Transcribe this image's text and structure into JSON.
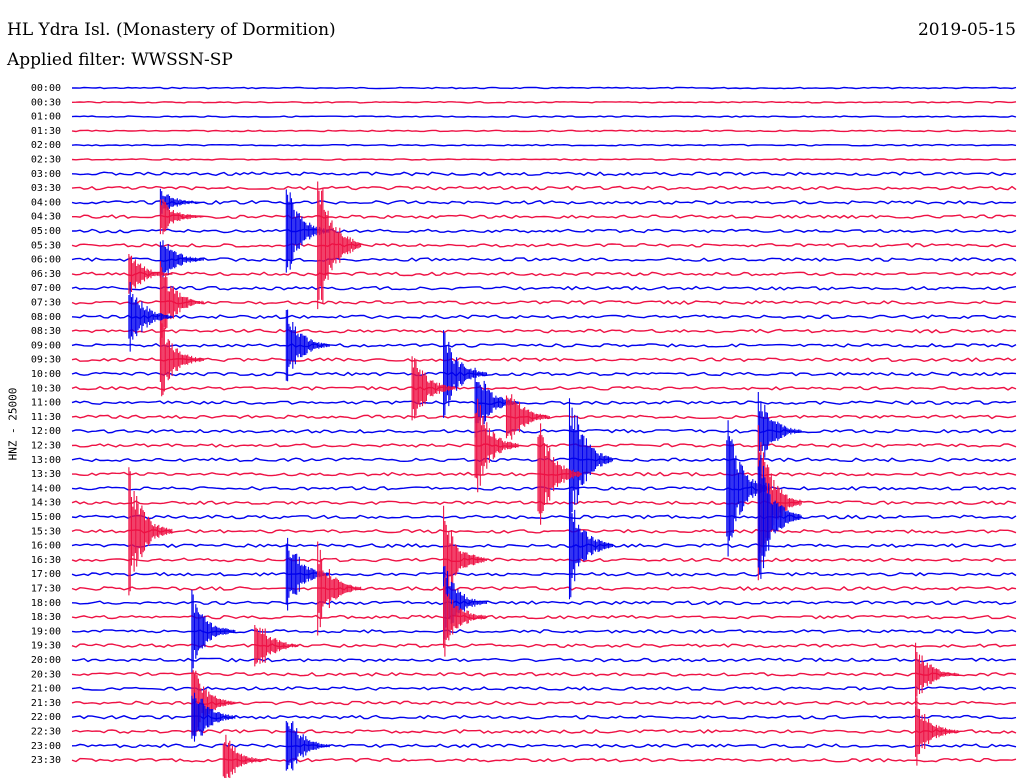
{
  "header": {
    "station": "HL Ydra Isl. (Monastery of Dormition)",
    "filter": "Applied filter: WWSSN-SP",
    "date": "2019-05-15"
  },
  "colors": {
    "blue": "#0000ee",
    "red": "#ee1144",
    "background": "#ffffff"
  },
  "chart_data": {
    "type": "line",
    "title": "HL Ydra Isl. (Monastery of Dormition)",
    "subtitle": "Applied filter: WWSSN-SP",
    "ylabel": "HNZ - 25000",
    "xlabel": "",
    "y_tick_labels": [
      "00:00",
      "00:30",
      "01:00",
      "01:30",
      "02:00",
      "02:30",
      "03:00",
      "03:30",
      "04:00",
      "04:30",
      "05:00",
      "05:30",
      "06:00",
      "06:30",
      "07:00",
      "07:30",
      "08:00",
      "08:30",
      "09:00",
      "09:30",
      "10:00",
      "10:30",
      "11:00",
      "11:30",
      "12:00",
      "12:30",
      "13:00",
      "13:30",
      "14:00",
      "14:30",
      "15:00",
      "15:30",
      "16:00",
      "16:30",
      "17:00",
      "17:30",
      "18:00",
      "18:30",
      "19:00",
      "19:30",
      "20:00",
      "20:30",
      "21:00",
      "21:30",
      "22:00",
      "22:30",
      "23:00",
      "23:30"
    ],
    "trace_colors": [
      "blue",
      "red"
    ],
    "trace_duration_minutes": 30,
    "events": [
      {
        "row": 8,
        "minute": 3,
        "amplitude": 14
      },
      {
        "row": 9,
        "minute": 3,
        "amplitude": 20
      },
      {
        "row": 10,
        "minute": 7,
        "amplitude": 50
      },
      {
        "row": 11,
        "minute": 8,
        "amplitude": 90
      },
      {
        "row": 12,
        "minute": 3,
        "amplitude": 28
      },
      {
        "row": 13,
        "minute": 2,
        "amplitude": 24
      },
      {
        "row": 15,
        "minute": 3,
        "amplitude": 40
      },
      {
        "row": 16,
        "minute": 2,
        "amplitude": 40
      },
      {
        "row": 18,
        "minute": 7,
        "amplitude": 40
      },
      {
        "row": 19,
        "minute": 3,
        "amplitude": 40
      },
      {
        "row": 20,
        "minute": 12,
        "amplitude": 45
      },
      {
        "row": 21,
        "minute": 11,
        "amplitude": 40
      },
      {
        "row": 22,
        "minute": 13,
        "amplitude": 40
      },
      {
        "row": 23,
        "minute": 14,
        "amplitude": 40
      },
      {
        "row": 24,
        "minute": 22,
        "amplitude": 40
      },
      {
        "row": 25,
        "minute": 13,
        "amplitude": 55
      },
      {
        "row": 26,
        "minute": 16,
        "amplitude": 75
      },
      {
        "row": 27,
        "minute": 15,
        "amplitude": 60
      },
      {
        "row": 28,
        "minute": 21,
        "amplitude": 70
      },
      {
        "row": 29,
        "minute": 22,
        "amplitude": 75
      },
      {
        "row": 30,
        "minute": 22,
        "amplitude": 70
      },
      {
        "row": 31,
        "minute": 2,
        "amplitude": 65
      },
      {
        "row": 32,
        "minute": 16,
        "amplitude": 55
      },
      {
        "row": 33,
        "minute": 12,
        "amplitude": 50
      },
      {
        "row": 34,
        "minute": 7,
        "amplitude": 45
      },
      {
        "row": 35,
        "minute": 8,
        "amplitude": 45
      },
      {
        "row": 36,
        "minute": 12,
        "amplitude": 40
      },
      {
        "row": 37,
        "minute": 12,
        "amplitude": 40
      },
      {
        "row": 38,
        "minute": 4,
        "amplitude": 40
      },
      {
        "row": 39,
        "minute": 6,
        "amplitude": 35
      },
      {
        "row": 41,
        "minute": 27,
        "amplitude": 30
      },
      {
        "row": 43,
        "minute": 4,
        "amplitude": 40
      },
      {
        "row": 44,
        "minute": 4,
        "amplitude": 40
      },
      {
        "row": 45,
        "minute": 27,
        "amplitude": 35
      },
      {
        "row": 46,
        "minute": 7,
        "amplitude": 40
      },
      {
        "row": 47,
        "minute": 5,
        "amplitude": 30
      }
    ]
  }
}
